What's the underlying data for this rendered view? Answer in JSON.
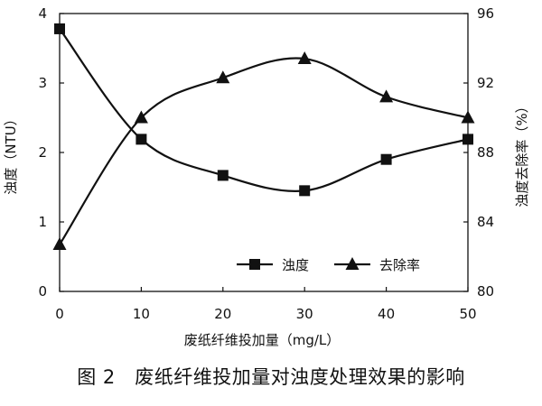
{
  "chart_data": {
    "type": "line",
    "x": [
      0,
      10,
      20,
      30,
      40,
      50
    ],
    "xlim": [
      0,
      50
    ],
    "x_ticks": [
      "0",
      "10",
      "20",
      "30",
      "40",
      "50"
    ],
    "xlabel": "废纸纤维投加量（mg/L）",
    "ylabel_left": "浊度（NTU）",
    "ylim_left": [
      0,
      4
    ],
    "y_ticks_left": [
      "0",
      "1",
      "2",
      "3",
      "4"
    ],
    "ylabel_right": "浊度去除率（%）",
    "ylim_right": [
      80,
      96
    ],
    "y_ticks_right": [
      "80",
      "84",
      "88",
      "92",
      "96"
    ],
    "series": [
      {
        "name": "浊度",
        "axis": "left",
        "marker": "square",
        "values": [
          3.78,
          2.19,
          1.67,
          1.45,
          1.9,
          2.19
        ]
      },
      {
        "name": "去除率",
        "axis": "right",
        "marker": "triangle",
        "values": [
          82.7,
          90.0,
          92.3,
          93.4,
          91.2,
          90.0
        ]
      }
    ],
    "grid": false,
    "legend_position": "bottom-right",
    "color": "#111111"
  },
  "caption": "图 2　废纸纤维投加量对浊度处理效果的影响"
}
